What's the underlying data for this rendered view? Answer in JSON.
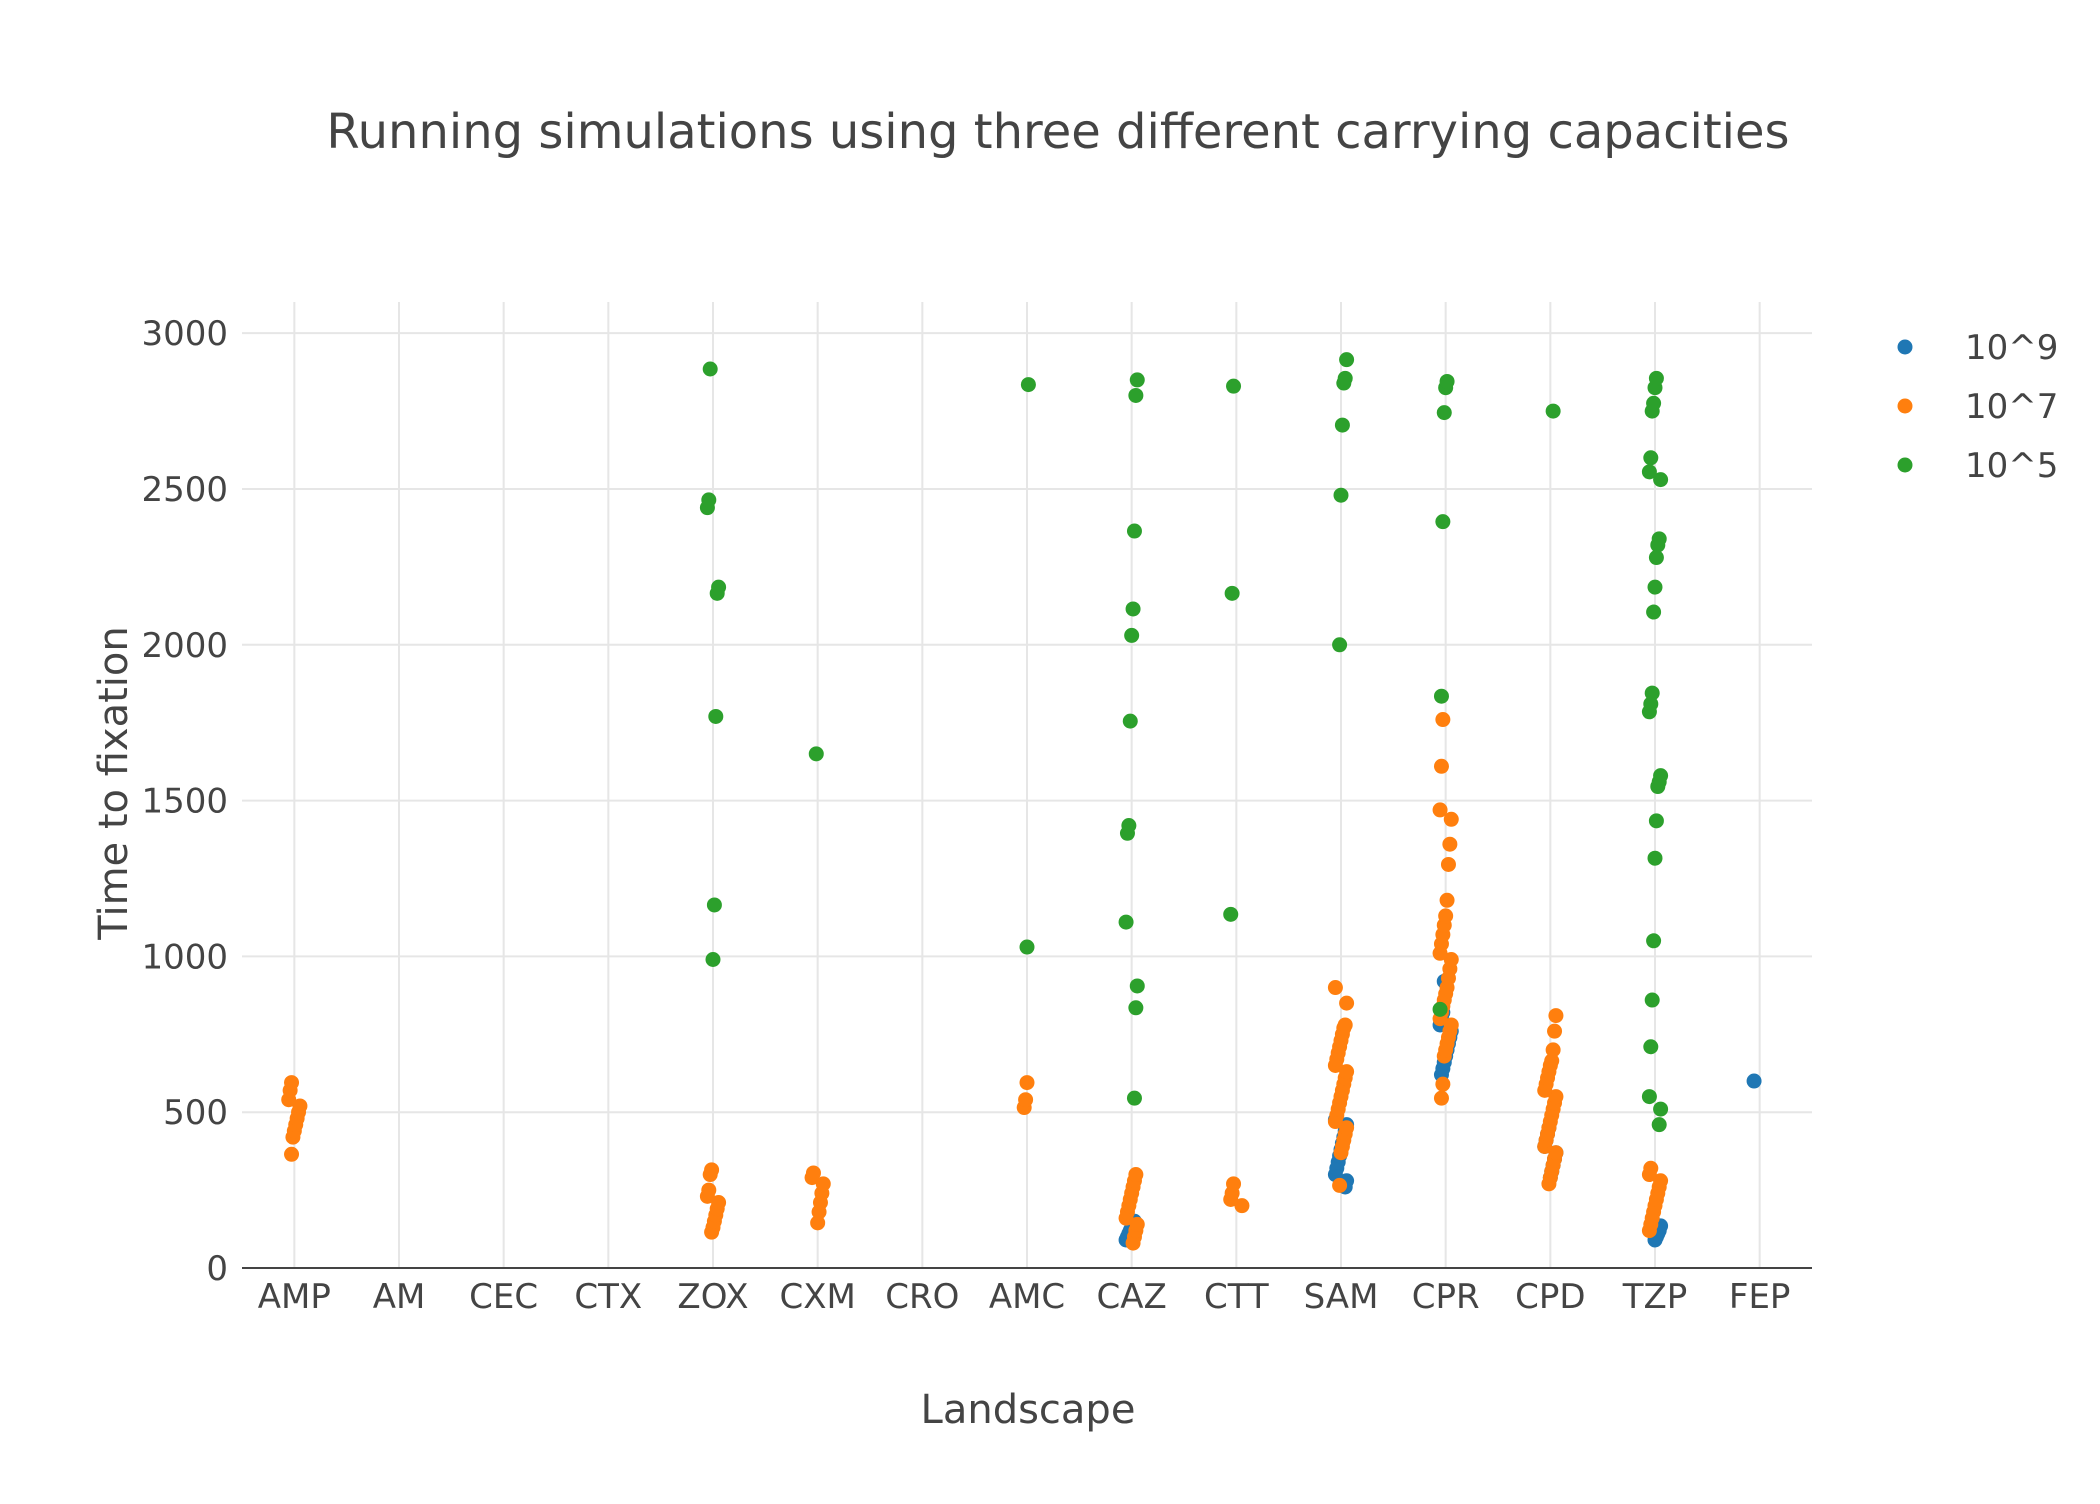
{
  "chart_data": {
    "type": "scatter",
    "title": "Running simulations using three different carrying capacities",
    "xlabel": "Landscape",
    "ylabel": "Time to fixation",
    "categories": [
      "AMP",
      "AM",
      "CEC",
      "CTX",
      "ZOX",
      "CXM",
      "CRO",
      "AMC",
      "CAZ",
      "CTT",
      "SAM",
      "CPR",
      "CPD",
      "TZP",
      "FEP"
    ],
    "ylim": [
      0,
      3100
    ],
    "yticks": [
      0,
      500,
      1000,
      1500,
      2000,
      2500,
      3000
    ],
    "grid": true,
    "legend_position": "top-right",
    "series": [
      {
        "name": "10^9",
        "color": "#1f77b4",
        "points": [
          {
            "x": "CAZ",
            "y": 90
          },
          {
            "x": "CAZ",
            "y": 100
          },
          {
            "x": "CAZ",
            "y": 110
          },
          {
            "x": "CAZ",
            "y": 120
          },
          {
            "x": "CAZ",
            "y": 130
          },
          {
            "x": "CAZ",
            "y": 140
          },
          {
            "x": "CAZ",
            "y": 150
          },
          {
            "x": "SAM",
            "y": 260
          },
          {
            "x": "SAM",
            "y": 280
          },
          {
            "x": "SAM",
            "y": 300
          },
          {
            "x": "SAM",
            "y": 320
          },
          {
            "x": "SAM",
            "y": 340
          },
          {
            "x": "SAM",
            "y": 360
          },
          {
            "x": "SAM",
            "y": 380
          },
          {
            "x": "SAM",
            "y": 400
          },
          {
            "x": "SAM",
            "y": 420
          },
          {
            "x": "SAM",
            "y": 440
          },
          {
            "x": "SAM",
            "y": 460
          },
          {
            "x": "SAM",
            "y": 475
          },
          {
            "x": "CPR",
            "y": 620
          },
          {
            "x": "CPR",
            "y": 640
          },
          {
            "x": "CPR",
            "y": 660
          },
          {
            "x": "CPR",
            "y": 680
          },
          {
            "x": "CPR",
            "y": 700
          },
          {
            "x": "CPR",
            "y": 720
          },
          {
            "x": "CPR",
            "y": 740
          },
          {
            "x": "CPR",
            "y": 760
          },
          {
            "x": "CPR",
            "y": 780
          },
          {
            "x": "CPR",
            "y": 800
          },
          {
            "x": "CPR",
            "y": 820
          },
          {
            "x": "CPR",
            "y": 920
          },
          {
            "x": "CPD",
            "y": 290
          },
          {
            "x": "CPD",
            "y": 310
          },
          {
            "x": "CPD",
            "y": 330
          },
          {
            "x": "CPD",
            "y": 350
          },
          {
            "x": "CPD",
            "y": 370
          },
          {
            "x": "CPD",
            "y": 390
          },
          {
            "x": "CPD",
            "y": 410
          },
          {
            "x": "CPD",
            "y": 430
          },
          {
            "x": "CPD",
            "y": 450
          },
          {
            "x": "TZP",
            "y": 90
          },
          {
            "x": "TZP",
            "y": 100
          },
          {
            "x": "TZP",
            "y": 110
          },
          {
            "x": "TZP",
            "y": 120
          },
          {
            "x": "TZP",
            "y": 135
          },
          {
            "x": "FEP",
            "y": 600
          }
        ]
      },
      {
        "name": "10^7",
        "color": "#ff7f0e",
        "points": [
          {
            "x": "AMP",
            "y": 365
          },
          {
            "x": "AMP",
            "y": 420
          },
          {
            "x": "AMP",
            "y": 440
          },
          {
            "x": "AMP",
            "y": 460
          },
          {
            "x": "AMP",
            "y": 480
          },
          {
            "x": "AMP",
            "y": 500
          },
          {
            "x": "AMP",
            "y": 520
          },
          {
            "x": "AMP",
            "y": 540
          },
          {
            "x": "AMP",
            "y": 570
          },
          {
            "x": "AMP",
            "y": 595
          },
          {
            "x": "ZOX",
            "y": 115
          },
          {
            "x": "ZOX",
            "y": 130
          },
          {
            "x": "ZOX",
            "y": 150
          },
          {
            "x": "ZOX",
            "y": 170
          },
          {
            "x": "ZOX",
            "y": 190
          },
          {
            "x": "ZOX",
            "y": 210
          },
          {
            "x": "ZOX",
            "y": 230
          },
          {
            "x": "ZOX",
            "y": 250
          },
          {
            "x": "ZOX",
            "y": 300
          },
          {
            "x": "ZOX",
            "y": 315
          },
          {
            "x": "CXM",
            "y": 145
          },
          {
            "x": "CXM",
            "y": 180
          },
          {
            "x": "CXM",
            "y": 210
          },
          {
            "x": "CXM",
            "y": 240
          },
          {
            "x": "CXM",
            "y": 270
          },
          {
            "x": "CXM",
            "y": 290
          },
          {
            "x": "CXM",
            "y": 305
          },
          {
            "x": "AMC",
            "y": 515
          },
          {
            "x": "AMC",
            "y": 540
          },
          {
            "x": "AMC",
            "y": 595
          },
          {
            "x": "CAZ",
            "y": 80
          },
          {
            "x": "CAZ",
            "y": 100
          },
          {
            "x": "CAZ",
            "y": 120
          },
          {
            "x": "CAZ",
            "y": 140
          },
          {
            "x": "CAZ",
            "y": 160
          },
          {
            "x": "CAZ",
            "y": 180
          },
          {
            "x": "CAZ",
            "y": 200
          },
          {
            "x": "CAZ",
            "y": 220
          },
          {
            "x": "CAZ",
            "y": 240
          },
          {
            "x": "CAZ",
            "y": 260
          },
          {
            "x": "CAZ",
            "y": 280
          },
          {
            "x": "CAZ",
            "y": 300
          },
          {
            "x": "CTT",
            "y": 200
          },
          {
            "x": "CTT",
            "y": 220
          },
          {
            "x": "CTT",
            "y": 240
          },
          {
            "x": "CTT",
            "y": 270
          },
          {
            "x": "SAM",
            "y": 265
          },
          {
            "x": "SAM",
            "y": 370
          },
          {
            "x": "SAM",
            "y": 390
          },
          {
            "x": "SAM",
            "y": 410
          },
          {
            "x": "SAM",
            "y": 430
          },
          {
            "x": "SAM",
            "y": 450
          },
          {
            "x": "SAM",
            "y": 470
          },
          {
            "x": "SAM",
            "y": 490
          },
          {
            "x": "SAM",
            "y": 510
          },
          {
            "x": "SAM",
            "y": 530
          },
          {
            "x": "SAM",
            "y": 550
          },
          {
            "x": "SAM",
            "y": 570
          },
          {
            "x": "SAM",
            "y": 590
          },
          {
            "x": "SAM",
            "y": 610
          },
          {
            "x": "SAM",
            "y": 630
          },
          {
            "x": "SAM",
            "y": 650
          },
          {
            "x": "SAM",
            "y": 670
          },
          {
            "x": "SAM",
            "y": 690
          },
          {
            "x": "SAM",
            "y": 710
          },
          {
            "x": "SAM",
            "y": 730
          },
          {
            "x": "SAM",
            "y": 750
          },
          {
            "x": "SAM",
            "y": 770
          },
          {
            "x": "SAM",
            "y": 780
          },
          {
            "x": "SAM",
            "y": 850
          },
          {
            "x": "SAM",
            "y": 900
          },
          {
            "x": "CPR",
            "y": 545
          },
          {
            "x": "CPR",
            "y": 590
          },
          {
            "x": "CPR",
            "y": 680
          },
          {
            "x": "CPR",
            "y": 700
          },
          {
            "x": "CPR",
            "y": 720
          },
          {
            "x": "CPR",
            "y": 740
          },
          {
            "x": "CPR",
            "y": 760
          },
          {
            "x": "CPR",
            "y": 780
          },
          {
            "x": "CPR",
            "y": 800
          },
          {
            "x": "CPR",
            "y": 820
          },
          {
            "x": "CPR",
            "y": 840
          },
          {
            "x": "CPR",
            "y": 860
          },
          {
            "x": "CPR",
            "y": 880
          },
          {
            "x": "CPR",
            "y": 900
          },
          {
            "x": "CPR",
            "y": 930
          },
          {
            "x": "CPR",
            "y": 960
          },
          {
            "x": "CPR",
            "y": 990
          },
          {
            "x": "CPR",
            "y": 1010
          },
          {
            "x": "CPR",
            "y": 1040
          },
          {
            "x": "CPR",
            "y": 1070
          },
          {
            "x": "CPR",
            "y": 1100
          },
          {
            "x": "CPR",
            "y": 1130
          },
          {
            "x": "CPR",
            "y": 1180
          },
          {
            "x": "CPR",
            "y": 1295
          },
          {
            "x": "CPR",
            "y": 1360
          },
          {
            "x": "CPR",
            "y": 1440
          },
          {
            "x": "CPR",
            "y": 1470
          },
          {
            "x": "CPR",
            "y": 1610
          },
          {
            "x": "CPR",
            "y": 1760
          },
          {
            "x": "CPD",
            "y": 270
          },
          {
            "x": "CPD",
            "y": 290
          },
          {
            "x": "CPD",
            "y": 310
          },
          {
            "x": "CPD",
            "y": 330
          },
          {
            "x": "CPD",
            "y": 350
          },
          {
            "x": "CPD",
            "y": 370
          },
          {
            "x": "CPD",
            "y": 390
          },
          {
            "x": "CPD",
            "y": 410
          },
          {
            "x": "CPD",
            "y": 430
          },
          {
            "x": "CPD",
            "y": 450
          },
          {
            "x": "CPD",
            "y": 470
          },
          {
            "x": "CPD",
            "y": 490
          },
          {
            "x": "CPD",
            "y": 510
          },
          {
            "x": "CPD",
            "y": 530
          },
          {
            "x": "CPD",
            "y": 550
          },
          {
            "x": "CPD",
            "y": 570
          },
          {
            "x": "CPD",
            "y": 590
          },
          {
            "x": "CPD",
            "y": 610
          },
          {
            "x": "CPD",
            "y": 630
          },
          {
            "x": "CPD",
            "y": 650
          },
          {
            "x": "CPD",
            "y": 665
          },
          {
            "x": "CPD",
            "y": 700
          },
          {
            "x": "CPD",
            "y": 760
          },
          {
            "x": "CPD",
            "y": 810
          },
          {
            "x": "TZP",
            "y": 120
          },
          {
            "x": "TZP",
            "y": 140
          },
          {
            "x": "TZP",
            "y": 160
          },
          {
            "x": "TZP",
            "y": 180
          },
          {
            "x": "TZP",
            "y": 200
          },
          {
            "x": "TZP",
            "y": 220
          },
          {
            "x": "TZP",
            "y": 240
          },
          {
            "x": "TZP",
            "y": 260
          },
          {
            "x": "TZP",
            "y": 280
          },
          {
            "x": "TZP",
            "y": 300
          },
          {
            "x": "TZP",
            "y": 320
          }
        ]
      },
      {
        "name": "10^5",
        "color": "#2ca02c",
        "points": [
          {
            "x": "ZOX",
            "y": 990
          },
          {
            "x": "ZOX",
            "y": 1165
          },
          {
            "x": "ZOX",
            "y": 1770
          },
          {
            "x": "ZOX",
            "y": 2165
          },
          {
            "x": "ZOX",
            "y": 2185
          },
          {
            "x": "ZOX",
            "y": 2440
          },
          {
            "x": "ZOX",
            "y": 2465
          },
          {
            "x": "ZOX",
            "y": 2885
          },
          {
            "x": "CXM",
            "y": 1650
          },
          {
            "x": "AMC",
            "y": 1030
          },
          {
            "x": "AMC",
            "y": 2835
          },
          {
            "x": "CAZ",
            "y": 545
          },
          {
            "x": "CAZ",
            "y": 835
          },
          {
            "x": "CAZ",
            "y": 905
          },
          {
            "x": "CAZ",
            "y": 1110
          },
          {
            "x": "CAZ",
            "y": 1395
          },
          {
            "x": "CAZ",
            "y": 1420
          },
          {
            "x": "CAZ",
            "y": 1755
          },
          {
            "x": "CAZ",
            "y": 2030
          },
          {
            "x": "CAZ",
            "y": 2115
          },
          {
            "x": "CAZ",
            "y": 2365
          },
          {
            "x": "CAZ",
            "y": 2800
          },
          {
            "x": "CAZ",
            "y": 2850
          },
          {
            "x": "CTT",
            "y": 1135
          },
          {
            "x": "CTT",
            "y": 2165
          },
          {
            "x": "CTT",
            "y": 2830
          },
          {
            "x": "SAM",
            "y": 2000
          },
          {
            "x": "SAM",
            "y": 2480
          },
          {
            "x": "SAM",
            "y": 2705
          },
          {
            "x": "SAM",
            "y": 2840
          },
          {
            "x": "SAM",
            "y": 2855
          },
          {
            "x": "SAM",
            "y": 2915
          },
          {
            "x": "CPR",
            "y": 830
          },
          {
            "x": "CPR",
            "y": 1835
          },
          {
            "x": "CPR",
            "y": 2395
          },
          {
            "x": "CPR",
            "y": 2745
          },
          {
            "x": "CPR",
            "y": 2825
          },
          {
            "x": "CPR",
            "y": 2845
          },
          {
            "x": "CPD",
            "y": 2750
          },
          {
            "x": "TZP",
            "y": 460
          },
          {
            "x": "TZP",
            "y": 510
          },
          {
            "x": "TZP",
            "y": 550
          },
          {
            "x": "TZP",
            "y": 710
          },
          {
            "x": "TZP",
            "y": 860
          },
          {
            "x": "TZP",
            "y": 1050
          },
          {
            "x": "TZP",
            "y": 1315
          },
          {
            "x": "TZP",
            "y": 1435
          },
          {
            "x": "TZP",
            "y": 1545
          },
          {
            "x": "TZP",
            "y": 1560
          },
          {
            "x": "TZP",
            "y": 1580
          },
          {
            "x": "TZP",
            "y": 1785
          },
          {
            "x": "TZP",
            "y": 1810
          },
          {
            "x": "TZP",
            "y": 1845
          },
          {
            "x": "TZP",
            "y": 2105
          },
          {
            "x": "TZP",
            "y": 2185
          },
          {
            "x": "TZP",
            "y": 2280
          },
          {
            "x": "TZP",
            "y": 2320
          },
          {
            "x": "TZP",
            "y": 2340
          },
          {
            "x": "TZP",
            "y": 2530
          },
          {
            "x": "TZP",
            "y": 2555
          },
          {
            "x": "TZP",
            "y": 2600
          },
          {
            "x": "TZP",
            "y": 2750
          },
          {
            "x": "TZP",
            "y": 2775
          },
          {
            "x": "TZP",
            "y": 2825
          },
          {
            "x": "TZP",
            "y": 2855
          }
        ]
      }
    ]
  }
}
